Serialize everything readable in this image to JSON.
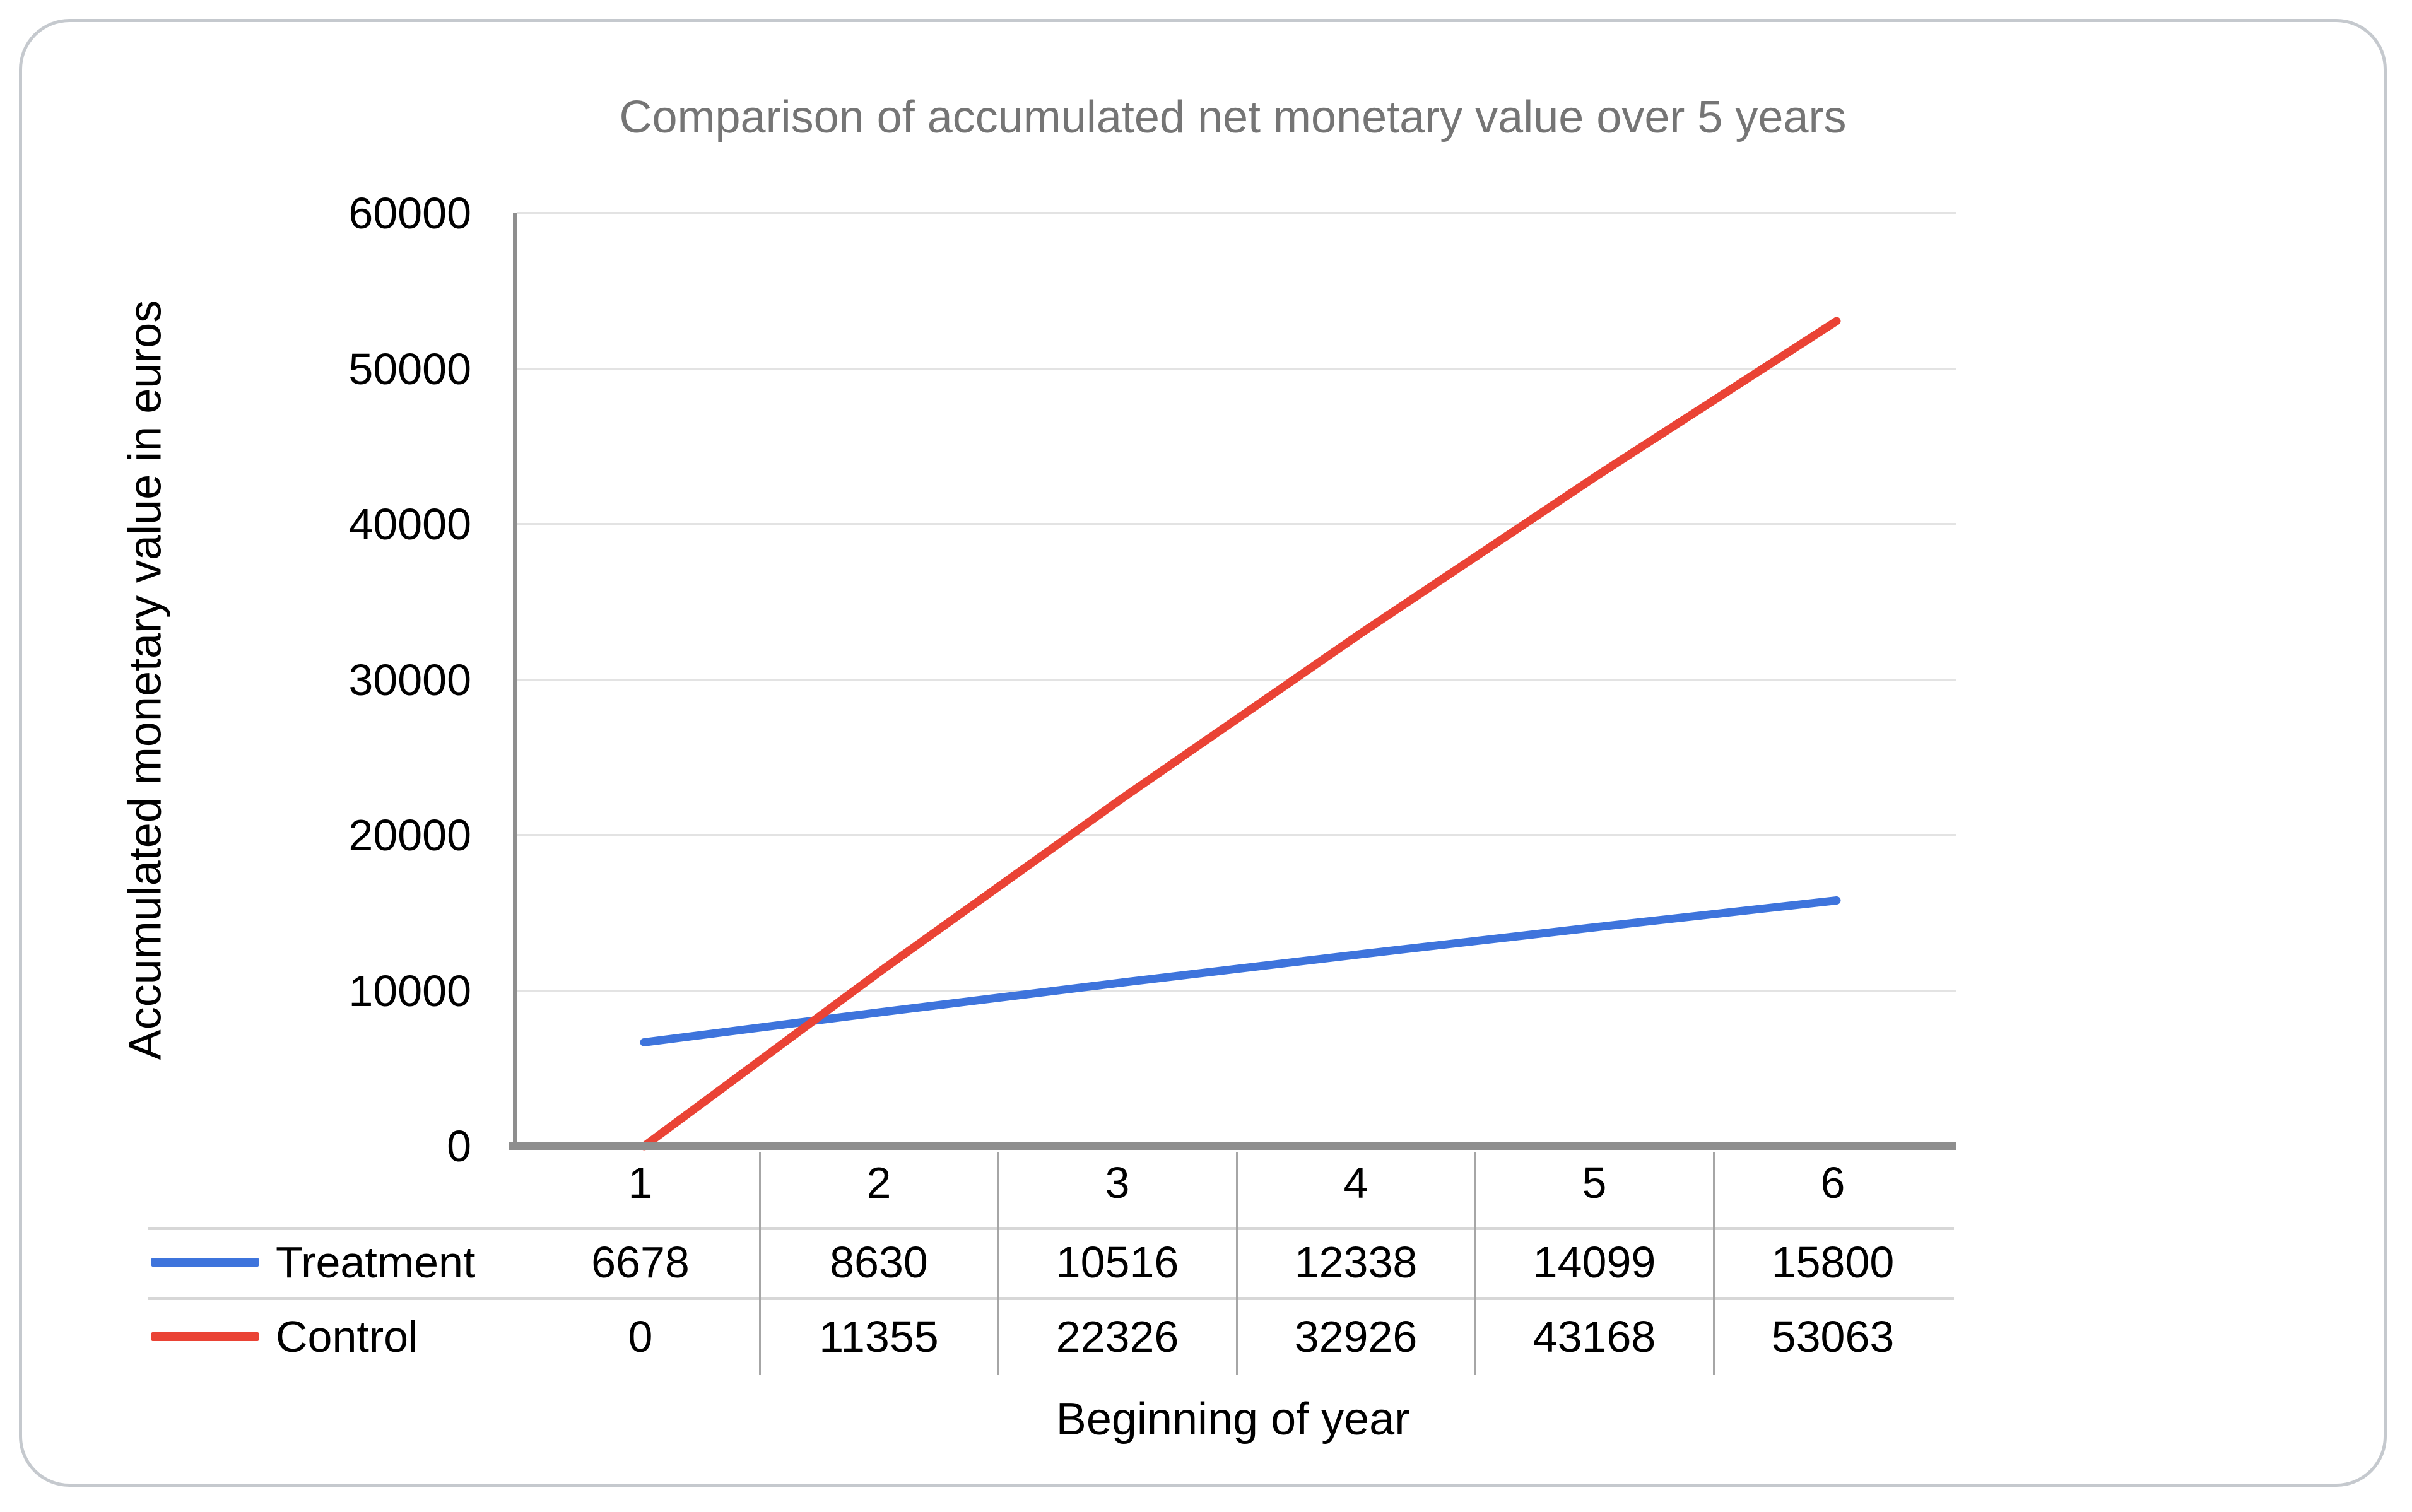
{
  "chart_data": {
    "type": "line",
    "title": "Comparison of accumulated net monetary value over 5 years",
    "xlabel": "Beginning of year",
    "ylabel": "Accumulated monetary value in euros",
    "x": [
      1,
      2,
      3,
      4,
      5,
      6
    ],
    "series": [
      {
        "name": "Treatment",
        "color": "#3e74dc",
        "values": [
          6678,
          8630,
          10516,
          12338,
          14099,
          15800
        ]
      },
      {
        "name": "Control",
        "color": "#ea4335",
        "values": [
          0,
          11355,
          22326,
          32926,
          43168,
          53063
        ]
      }
    ],
    "ylim": [
      0,
      60000
    ],
    "yticks": [
      0,
      10000,
      20000,
      30000,
      40000,
      50000,
      60000
    ],
    "grid": true,
    "legend_position": "right",
    "legend": [
      "Treatment",
      "Control"
    ],
    "data_table_shown": true
  }
}
